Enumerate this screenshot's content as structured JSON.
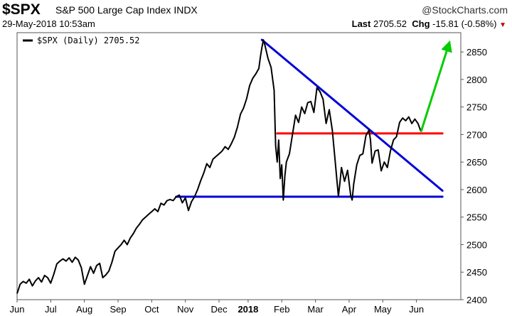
{
  "header": {
    "symbol": "$SPX",
    "name": "S&P 500 Large Cap Index",
    "exchange": "INDX",
    "brand": "@StockCharts.com",
    "datetime": "29-May-2018 10:53am",
    "last_label": "Last",
    "last_value": "2705.52",
    "chg_label": "Chg",
    "chg_value": "-15.81 (-0.58%)",
    "chg_arrow": "▼"
  },
  "chart_data": {
    "type": "line",
    "legend": "$SPX (Daily) 2705.52",
    "series": [
      {
        "name": "$SPX (Daily)",
        "color": "#000000",
        "points": [
          [
            0.0,
            2411
          ],
          [
            0.2,
            2428
          ],
          [
            0.4,
            2433
          ],
          [
            0.6,
            2430
          ],
          [
            0.8,
            2437
          ],
          [
            1.0,
            2425
          ],
          [
            1.2,
            2434
          ],
          [
            1.4,
            2440
          ],
          [
            1.6,
            2432
          ],
          [
            1.8,
            2444
          ],
          [
            2.0,
            2440
          ],
          [
            2.2,
            2430
          ],
          [
            2.4,
            2446
          ],
          [
            2.6,
            2465
          ],
          [
            2.8,
            2470
          ],
          [
            3.0,
            2474
          ],
          [
            3.2,
            2470
          ],
          [
            3.4,
            2476
          ],
          [
            3.6,
            2468
          ],
          [
            3.8,
            2477
          ],
          [
            4.0,
            2472
          ],
          [
            4.2,
            2458
          ],
          [
            4.4,
            2428
          ],
          [
            4.6,
            2444
          ],
          [
            4.8,
            2460
          ],
          [
            5.0,
            2448
          ],
          [
            5.2,
            2462
          ],
          [
            5.4,
            2466
          ],
          [
            5.6,
            2440
          ],
          [
            5.8,
            2445
          ],
          [
            6.0,
            2452
          ],
          [
            6.2,
            2468
          ],
          [
            6.4,
            2488
          ],
          [
            6.6,
            2494
          ],
          [
            6.8,
            2500
          ],
          [
            7.0,
            2508
          ],
          [
            7.2,
            2500
          ],
          [
            7.4,
            2512
          ],
          [
            7.6,
            2520
          ],
          [
            7.8,
            2530
          ],
          [
            8.0,
            2537
          ],
          [
            8.2,
            2545
          ],
          [
            8.4,
            2550
          ],
          [
            8.6,
            2555
          ],
          [
            8.8,
            2560
          ],
          [
            9.0,
            2565
          ],
          [
            9.2,
            2560
          ],
          [
            9.4,
            2575
          ],
          [
            9.6,
            2572
          ],
          [
            9.8,
            2580
          ],
          [
            10.0,
            2582
          ],
          [
            10.2,
            2580
          ],
          [
            10.4,
            2587
          ],
          [
            10.6,
            2590
          ],
          [
            10.8,
            2576
          ],
          [
            11.0,
            2585
          ],
          [
            11.2,
            2562
          ],
          [
            11.4,
            2578
          ],
          [
            11.6,
            2587
          ],
          [
            11.8,
            2600
          ],
          [
            12.0,
            2616
          ],
          [
            12.2,
            2630
          ],
          [
            12.4,
            2647
          ],
          [
            12.6,
            2640
          ],
          [
            12.8,
            2655
          ],
          [
            13.0,
            2660
          ],
          [
            13.2,
            2665
          ],
          [
            13.4,
            2670
          ],
          [
            13.6,
            2678
          ],
          [
            13.8,
            2673
          ],
          [
            14.0,
            2683
          ],
          [
            14.2,
            2695
          ],
          [
            14.4,
            2713
          ],
          [
            14.6,
            2737
          ],
          [
            14.8,
            2748
          ],
          [
            15.0,
            2765
          ],
          [
            15.2,
            2789
          ],
          [
            15.4,
            2802
          ],
          [
            15.6,
            2810
          ],
          [
            15.8,
            2820
          ],
          [
            15.9,
            2840
          ],
          [
            16.0,
            2858
          ],
          [
            16.1,
            2872
          ],
          [
            16.2,
            2862
          ],
          [
            16.4,
            2838
          ],
          [
            16.6,
            2822
          ],
          [
            16.8,
            2780
          ],
          [
            16.9,
            2680
          ],
          [
            17.0,
            2650
          ],
          [
            17.1,
            2690
          ],
          [
            17.2,
            2620
          ],
          [
            17.3,
            2645
          ],
          [
            17.4,
            2581
          ],
          [
            17.5,
            2625
          ],
          [
            17.6,
            2650
          ],
          [
            17.8,
            2665
          ],
          [
            18.0,
            2700
          ],
          [
            18.2,
            2735
          ],
          [
            18.4,
            2722
          ],
          [
            18.6,
            2750
          ],
          [
            18.8,
            2738
          ],
          [
            19.0,
            2758
          ],
          [
            19.2,
            2760
          ],
          [
            19.4,
            2740
          ],
          [
            19.6,
            2785
          ],
          [
            19.8,
            2778
          ],
          [
            20.0,
            2764
          ],
          [
            20.2,
            2720
          ],
          [
            20.4,
            2745
          ],
          [
            20.6,
            2708
          ],
          [
            20.8,
            2648
          ],
          [
            20.9,
            2618
          ],
          [
            21.0,
            2588
          ],
          [
            21.1,
            2612
          ],
          [
            21.2,
            2640
          ],
          [
            21.4,
            2615
          ],
          [
            21.6,
            2635
          ],
          [
            21.8,
            2590
          ],
          [
            21.9,
            2581
          ],
          [
            22.0,
            2610
          ],
          [
            22.2,
            2645
          ],
          [
            22.4,
            2662
          ],
          [
            22.6,
            2665
          ],
          [
            22.8,
            2698
          ],
          [
            23.0,
            2708
          ],
          [
            23.1,
            2690
          ],
          [
            23.2,
            2648
          ],
          [
            23.4,
            2670
          ],
          [
            23.6,
            2672
          ],
          [
            23.8,
            2634
          ],
          [
            24.0,
            2650
          ],
          [
            24.2,
            2640
          ],
          [
            24.4,
            2670
          ],
          [
            24.6,
            2690
          ],
          [
            24.8,
            2696
          ],
          [
            25.0,
            2722
          ],
          [
            25.2,
            2730
          ],
          [
            25.4,
            2725
          ],
          [
            25.6,
            2732
          ],
          [
            25.8,
            2720
          ],
          [
            26.0,
            2728
          ],
          [
            26.2,
            2720
          ],
          [
            26.4,
            2705
          ]
        ]
      }
    ],
    "annotations": {
      "support_level": 2587,
      "resistance_level": 2702,
      "trendline": {
        "start": [
          16.0,
          2872
        ],
        "end": [
          27.8,
          2598
        ],
        "color": "#0000d8"
      },
      "support_line": {
        "start": [
          10.4,
          2587
        ],
        "end": [
          27.8,
          2587
        ],
        "color": "#0000d8"
      },
      "resistance_line": {
        "start": [
          17.0,
          2702
        ],
        "end": [
          27.8,
          2702
        ],
        "color": "#ff0000"
      },
      "forecast_arrow": {
        "start": [
          26.4,
          2705
        ],
        "end": [
          28.3,
          2871
        ],
        "color": "#00cc00"
      }
    },
    "x_tick_labels": [
      {
        "label": "Jun",
        "x": 0.0
      },
      {
        "label": "Jul",
        "x": 2.2
      },
      {
        "label": "Aug",
        "x": 4.4
      },
      {
        "label": "Sep",
        "x": 6.6
      },
      {
        "label": "Oct",
        "x": 8.8
      },
      {
        "label": "Nov",
        "x": 11.0
      },
      {
        "label": "Dec",
        "x": 13.2
      },
      {
        "label": "2018",
        "x": 15.1,
        "bold": true
      },
      {
        "label": "Feb",
        "x": 17.3
      },
      {
        "label": "Mar",
        "x": 19.5
      },
      {
        "label": "Apr",
        "x": 21.7
      },
      {
        "label": "May",
        "x": 23.9
      },
      {
        "label": "Jun",
        "x": 26.1
      }
    ],
    "y_ticks": [
      2400,
      2450,
      2500,
      2550,
      2600,
      2650,
      2700,
      2750,
      2800,
      2850
    ],
    "xlim": [
      0,
      29
    ],
    "ylim": [
      2400,
      2885
    ],
    "y_axis_side": "right",
    "legend_position": "top-left"
  }
}
